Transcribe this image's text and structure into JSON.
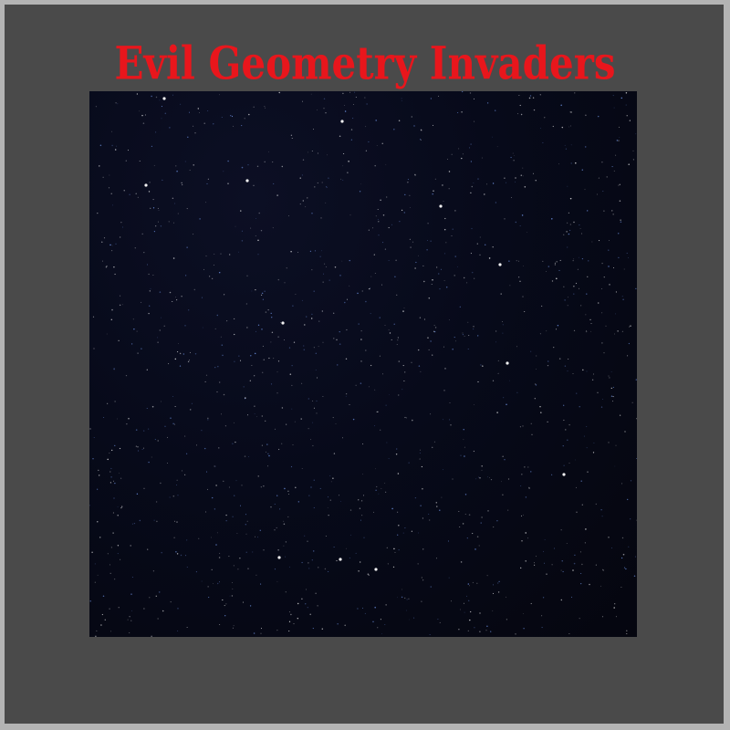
{
  "game": {
    "title": "Evil Geometry Invaders",
    "title_color": "#e8161c"
  },
  "colors": {
    "outer_border": "#b4b4b4",
    "frame_background": "#4a4a4a",
    "space_background": "#070a1a",
    "star_bright": "#ffffff",
    "star_blue": "#7ea6ff"
  }
}
